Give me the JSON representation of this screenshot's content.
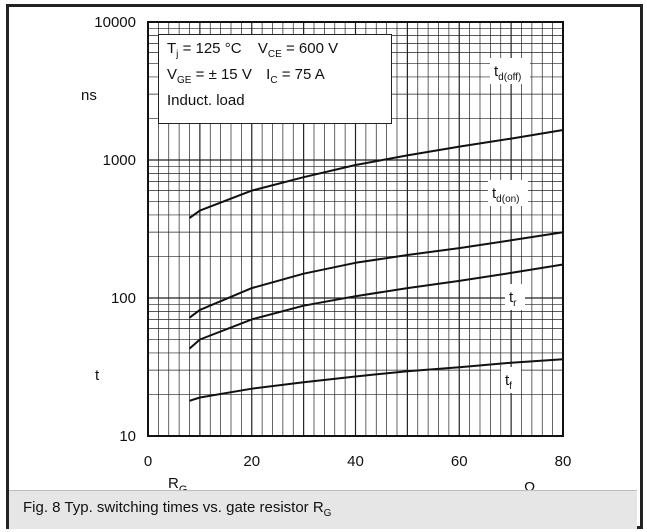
{
  "caption": {
    "main": "Fig. 8 Typ. switching times vs. gate resistor R",
    "sub": "G"
  },
  "conditions": {
    "line1_a": "T",
    "line1_a_sub": "j",
    "line1_a_val": " = 125 °C",
    "line1_b": "V",
    "line1_b_sub": "CE",
    "line1_b_val": " = 600 V",
    "line2_a": "V",
    "line2_a_sub": "GE",
    "line2_a_val": " = ± 15 V",
    "line2_b": "I",
    "line2_b_sub": "C",
    "line2_b_val": " = 75 A",
    "line3": "Induct. load"
  },
  "chart_data": {
    "type": "line",
    "xlabel_main": "R",
    "xlabel_sub": "G",
    "xunit": "Ω",
    "ylabel": "t",
    "yunit": "ns",
    "x_scale": "linear",
    "y_scale": "log",
    "xlim": [
      0,
      80
    ],
    "ylim": [
      10,
      10000
    ],
    "x_ticks": [
      "0",
      "20",
      "40",
      "60",
      "80"
    ],
    "y_ticks": [
      "10",
      "100",
      "1000",
      "10000"
    ],
    "grid": true,
    "series": [
      {
        "name": "t",
        "sub": "d(off)",
        "label_name": "tdoff_label",
        "x": [
          8,
          10,
          20,
          30,
          40,
          50,
          60,
          70,
          80
        ],
        "y": [
          380,
          430,
          600,
          750,
          920,
          1080,
          1250,
          1430,
          1650
        ]
      },
      {
        "name": "t",
        "sub": "d(on)",
        "label_name": "tdon_label",
        "x": [
          8,
          10,
          20,
          30,
          40,
          50,
          60,
          70,
          80
        ],
        "y": [
          72,
          82,
          118,
          150,
          180,
          205,
          230,
          262,
          300
        ]
      },
      {
        "name": "t",
        "sub": "r",
        "label_name": "tr_label",
        "x": [
          8,
          10,
          20,
          30,
          40,
          50,
          60,
          70,
          80
        ],
        "y": [
          43,
          50,
          70,
          88,
          103,
          118,
          133,
          152,
          175
        ]
      },
      {
        "name": "t",
        "sub": "f",
        "label_name": "tf_label",
        "x": [
          8,
          10,
          20,
          30,
          40,
          50,
          60,
          70,
          80
        ],
        "y": [
          18,
          19,
          22,
          24.5,
          27,
          29.5,
          31.5,
          34,
          36
        ]
      }
    ],
    "line_color": "#111111",
    "grid_color": "#222222"
  }
}
